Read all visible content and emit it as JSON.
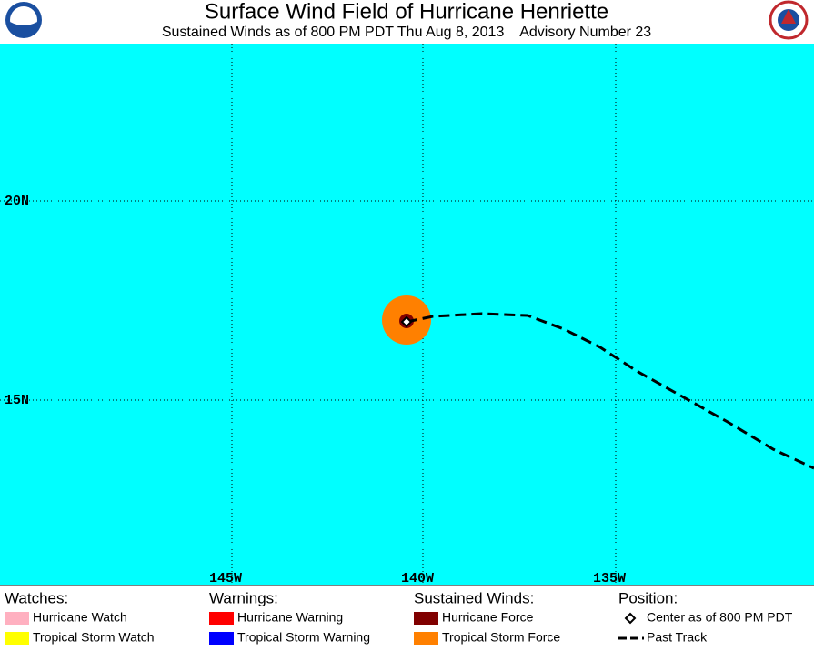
{
  "header": {
    "title": "Surface Wind Field of Hurricane Henriette",
    "subtitle": "Sustained Winds as of 800 PM PDT Thu Aug 8, 2013    Advisory Number 23"
  },
  "map": {
    "lat_labels": [
      "20N",
      "15N"
    ],
    "lon_labels": [
      "145W",
      "140W",
      "135W"
    ]
  },
  "legend": {
    "groups": [
      {
        "heading": "Watches:",
        "items": [
          "Hurricane Watch",
          "Tropical Storm Watch"
        ]
      },
      {
        "heading": "Warnings:",
        "items": [
          "Hurricane Warning",
          "Tropical Storm Warning"
        ]
      },
      {
        "heading": "Sustained Winds:",
        "items": [
          "Hurricane Force",
          "Tropical Storm Force"
        ]
      },
      {
        "heading": "Position:",
        "items": [
          "Center as of 800 PM PDT",
          "Past Track"
        ]
      }
    ]
  }
}
